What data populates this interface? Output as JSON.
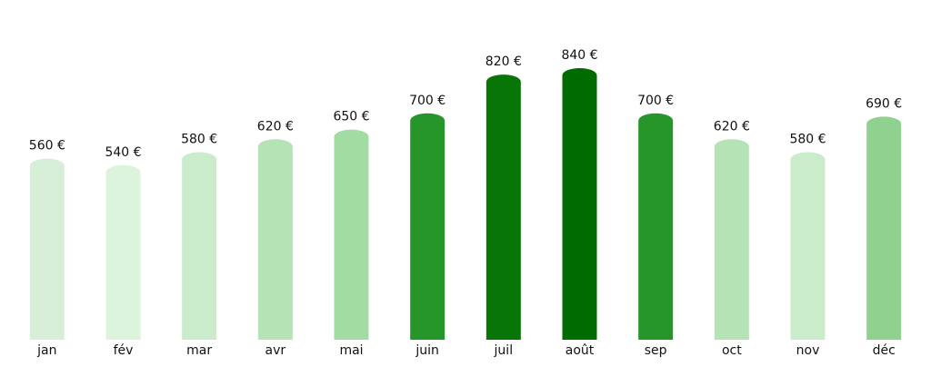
{
  "chart_data": {
    "type": "bar",
    "categories": [
      "jan",
      "fév",
      "mar",
      "avr",
      "mai",
      "juin",
      "juil",
      "août",
      "sep",
      "oct",
      "nov",
      "déc"
    ],
    "values": [
      560,
      540,
      580,
      620,
      650,
      700,
      820,
      840,
      700,
      620,
      580,
      690
    ],
    "value_labels": [
      "560 €",
      "540 €",
      "580 €",
      "620 €",
      "650 €",
      "700 €",
      "820 €",
      "840 €",
      "700 €",
      "620 €",
      "580 €",
      "690 €"
    ],
    "colors": [
      "#d6efd6",
      "#dcf3dc",
      "#cbeccb",
      "#b5e3b5",
      "#a2dca2",
      "#26962a",
      "#077507",
      "#006b00",
      "#26962a",
      "#b5e3b5",
      "#cbeccb",
      "#8fd28f"
    ],
    "ylim": [
      0,
      1000
    ]
  }
}
